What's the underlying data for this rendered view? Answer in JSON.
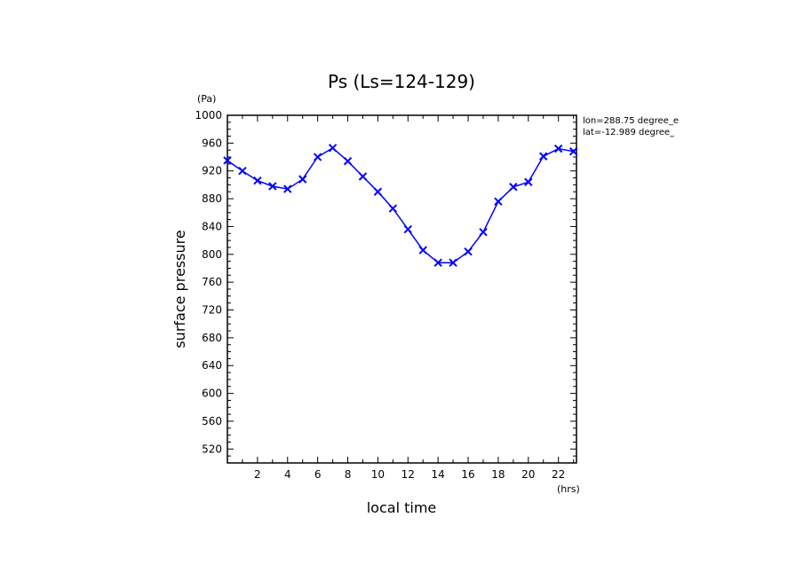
{
  "chart_data": {
    "type": "line",
    "title": "Ps (Ls=124-129)",
    "xlabel": "local time",
    "ylabel": "surface pressure",
    "x_unit": "(hrs)",
    "y_unit": "(Pa)",
    "xlim": [
      0,
      23.2
    ],
    "ylim": [
      500,
      1000
    ],
    "x_ticks": [
      2,
      4,
      6,
      8,
      10,
      12,
      14,
      16,
      18,
      20,
      22
    ],
    "y_ticks": [
      520,
      560,
      600,
      640,
      680,
      720,
      760,
      800,
      840,
      880,
      920,
      960,
      1000
    ],
    "annotations": [
      "lon=288.75 degree_e",
      "lat=-12.989 degree_"
    ],
    "colors": {
      "series": "#0000ff",
      "axes": "#000000"
    },
    "grid": false,
    "series": [
      {
        "marker": "x",
        "x": [
          0,
          1,
          2,
          3,
          4,
          5,
          6,
          7,
          8,
          9,
          10,
          11,
          12,
          13,
          14,
          15,
          16,
          17,
          18,
          19,
          20,
          21,
          22,
          23
        ],
        "y": [
          935,
          920,
          906,
          898,
          894,
          908,
          940,
          953,
          934,
          912,
          890,
          866,
          836,
          806,
          788,
          788,
          804,
          832,
          876,
          897,
          904,
          941,
          952,
          948
        ]
      }
    ]
  }
}
